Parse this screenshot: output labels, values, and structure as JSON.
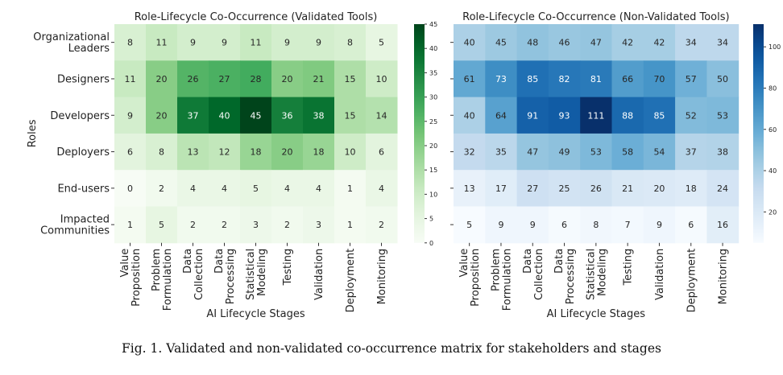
{
  "caption": "Fig. 1.  Validated and non-validated co-occurrence matrix for stakeholders and stages",
  "chart_data": [
    {
      "type": "heatmap",
      "title": "Role-Lifecycle Co-Occurrence (Validated Tools)",
      "xlabel": "AI Lifecycle Stages",
      "ylabel": "Roles",
      "rows": [
        "Organizational\nLeaders",
        "Designers",
        "Developers",
        "Deployers",
        "End-users",
        "Impacted\nCommunities"
      ],
      "columns": [
        "Value\nProposition",
        "Problem\nFormulation",
        "Data\nCollection",
        "Data\nProcessing",
        "Statistical\nModeling",
        "Testing",
        "Validation",
        "Deployment",
        "Monitoring"
      ],
      "values": [
        [
          8,
          11,
          9,
          9,
          11,
          9,
          9,
          8,
          5
        ],
        [
          11,
          20,
          26,
          27,
          28,
          20,
          21,
          15,
          10
        ],
        [
          9,
          20,
          37,
          40,
          45,
          36,
          38,
          15,
          14
        ],
        [
          6,
          8,
          13,
          12,
          18,
          20,
          18,
          10,
          6
        ],
        [
          0,
          2,
          4,
          4,
          5,
          4,
          4,
          1,
          4
        ],
        [
          1,
          5,
          2,
          2,
          3,
          2,
          3,
          1,
          2
        ]
      ],
      "colormap": "Greens",
      "vmin": 0,
      "vmax": 45,
      "colorbar_ticks": [
        0,
        5,
        10,
        15,
        20,
        25,
        30,
        35,
        40,
        45
      ]
    },
    {
      "type": "heatmap",
      "title": "Role-Lifecycle Co-Occurrence (Non-Validated Tools)",
      "xlabel": "AI Lifecycle Stages",
      "ylabel": "",
      "rows": [
        "Organizational\nLeaders",
        "Designers",
        "Developers",
        "Deployers",
        "End-users",
        "Impacted\nCommunities"
      ],
      "columns": [
        "Value\nProposition",
        "Problem\nFormulation",
        "Data\nCollection",
        "Data\nProcessing",
        "Statistical\nModeling",
        "Testing",
        "Validation",
        "Deployment",
        "Monitoring"
      ],
      "values": [
        [
          40,
          45,
          48,
          46,
          47,
          42,
          42,
          34,
          34
        ],
        [
          61,
          73,
          85,
          82,
          81,
          66,
          70,
          57,
          50
        ],
        [
          40,
          64,
          91,
          93,
          111,
          88,
          85,
          52,
          53
        ],
        [
          32,
          35,
          47,
          49,
          53,
          58,
          54,
          37,
          38
        ],
        [
          13,
          17,
          27,
          25,
          26,
          21,
          20,
          18,
          24
        ],
        [
          5,
          9,
          9,
          6,
          8,
          7,
          9,
          6,
          16
        ]
      ],
      "colormap": "Blues",
      "vmin": 5,
      "vmax": 111,
      "colorbar_ticks": [
        20,
        40,
        60,
        80,
        100
      ]
    }
  ]
}
